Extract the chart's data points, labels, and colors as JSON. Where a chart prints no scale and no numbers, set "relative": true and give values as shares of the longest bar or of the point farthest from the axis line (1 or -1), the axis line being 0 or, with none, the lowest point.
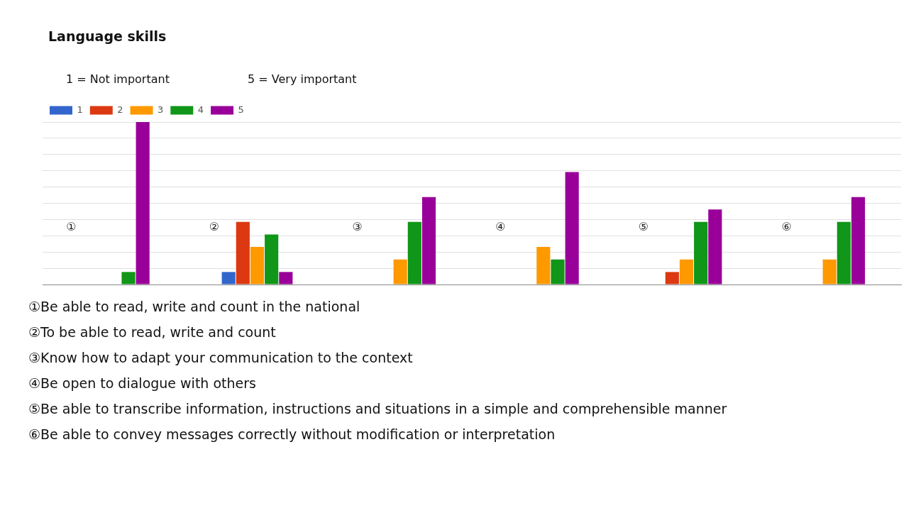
{
  "chart_data": {
    "type": "bar",
    "title": "Language skills",
    "subtitle": [
      "1 = Not important",
      "5 = Very important"
    ],
    "categories": [
      "①",
      "②",
      "③",
      "④",
      "⑤",
      "⑥"
    ],
    "relative": true,
    "series": [
      {
        "name": "1",
        "color": "#3366cc",
        "values": [
          0,
          0.077,
          0,
          0,
          0,
          0
        ]
      },
      {
        "name": "2",
        "color": "#dc3912",
        "values": [
          0,
          0.385,
          0,
          0,
          0.077,
          0
        ]
      },
      {
        "name": "3",
        "color": "#ff9900",
        "values": [
          0,
          0.231,
          0.154,
          0.231,
          0.154,
          0.154
        ]
      },
      {
        "name": "4",
        "color": "#109618",
        "values": [
          0.077,
          0.308,
          0.385,
          0.154,
          0.385,
          0.385
        ]
      },
      {
        "name": "5",
        "color": "#990099",
        "values": [
          1,
          0.077,
          0.538,
          0.692,
          0.462,
          0.538
        ]
      }
    ],
    "legend": "top left",
    "grid": "y",
    "annotations": [
      "①Be able to read, write and count in the national",
      "②To be able to read, write and count",
      "③Know how to adapt your communication to the context",
      "④Be open to dialogue with others",
      "⑤Be able to transcribe information, instructions and situations in a simple and comprehensible manner",
      "⑥Be able to convey messages correctly without modification or interpretation"
    ]
  }
}
